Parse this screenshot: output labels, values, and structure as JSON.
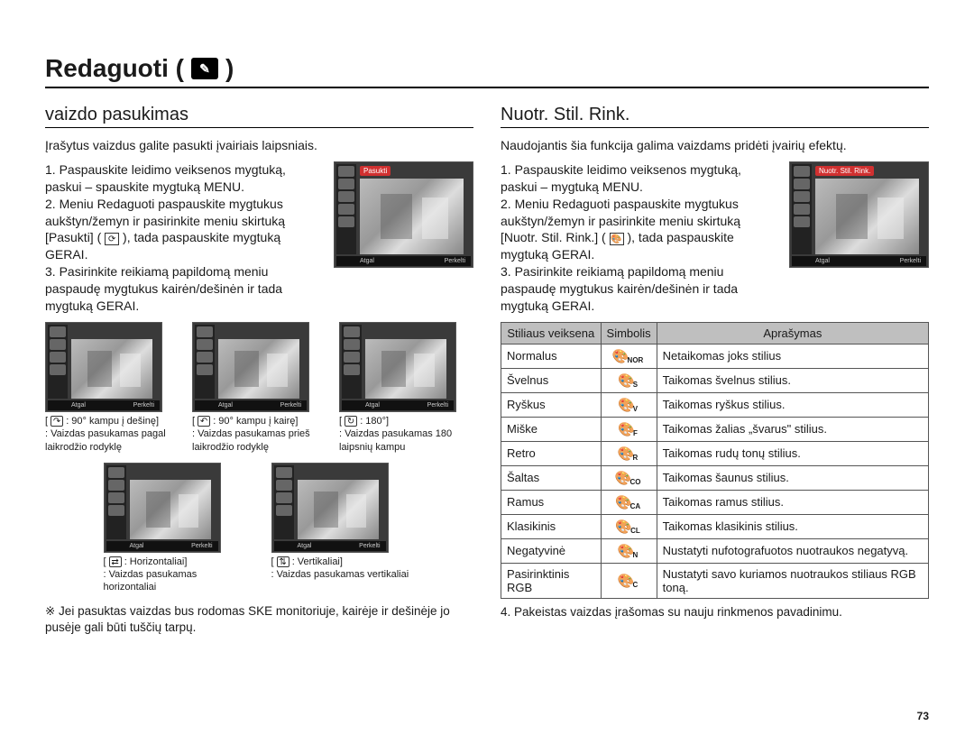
{
  "page": {
    "title": "Redaguoti (",
    "title_close": ")",
    "number": "73"
  },
  "left": {
    "heading": "vaizdo pasukimas",
    "intro": "Įrašytus vaizdus galite pasukti įvairiais laipsniais.",
    "step1": "1. Paspauskite leidimo veiksenos mygtuką, paskui – spauskite mygtuką MENU.",
    "step2": "2. Meniu Redaguoti paspauskite mygtukus aukštyn/žemyn ir pasirinkite meniu skirtuką [Pasukti] (",
    "step2b": "), tada paspauskite mygtuką GERAI.",
    "step3": "3. Pasirinkite reikiamą papildomą meniu paspaudę mygtukus kairėn/dešinėn ir tada mygtuką GERAI.",
    "thumb_menu": "Pasukti",
    "thumb_back": "Atgal",
    "thumb_move": "Perkelti",
    "rotations": [
      {
        "icon": "↷",
        "label": ": 90° kampu į dešinę]",
        "desc": ": Vaizdas pasukamas pagal laikrodžio rodyklę"
      },
      {
        "icon": "↶",
        "label": ": 90° kampu į kairę]",
        "desc": ": Vaizdas pasukamas prieš laikrodžio rodyklę"
      },
      {
        "icon": "↻",
        "label": ": 180°]",
        "desc": ": Vaizdas pasukamas 180 laipsnių kampu"
      }
    ],
    "rotations2": [
      {
        "icon": "⇄",
        "label": ": Horizontaliai]",
        "desc": ": Vaizdas pasukamas horizontaliai"
      },
      {
        "icon": "⇅",
        "label": ": Vertikaliai]",
        "desc": ": Vaizdas pasukamas vertikaliai"
      }
    ],
    "note": "※ Jei pasuktas vaizdas bus rodomas SKE monitoriuje, kairėje ir dešinėje jo pusėje gali būti tuščių tarpų."
  },
  "right": {
    "heading": "Nuotr. Stil. Rink.",
    "intro": "Naudojantis šia funkcija galima vaizdams pridėti įvairių efektų.",
    "step1": "1. Paspauskite leidimo veiksenos mygtuką, paskui – mygtuką MENU.",
    "step2": "2. Meniu Redaguoti paspauskite mygtukus aukštyn/žemyn ir pasirinkite meniu skirtuką [Nuotr. Stil. Rink.] (",
    "step2b": "), tada paspauskite mygtuką GERAI.",
    "step3": "3. Pasirinkite reikiamą papildomą meniu paspaudę mygtukus kairėn/dešinėn ir tada mygtuką GERAI.",
    "thumb_menu": "Nuotr. Stil. Rink.",
    "thumb_back": "Atgal",
    "thumb_move": "Perkelti",
    "table": {
      "headers": [
        "Stiliaus veiksena",
        "Simbolis",
        "Aprašymas"
      ],
      "rows": [
        {
          "mode": "Normalus",
          "sym": "NOR",
          "desc": "Netaikomas joks stilius"
        },
        {
          "mode": "Švelnus",
          "sym": "S",
          "desc": "Taikomas švelnus stilius."
        },
        {
          "mode": "Ryškus",
          "sym": "V",
          "desc": "Taikomas ryškus stilius."
        },
        {
          "mode": "Miške",
          "sym": "F",
          "desc": "Taikomas žalias „švarus\" stilius."
        },
        {
          "mode": "Retro",
          "sym": "R",
          "desc": "Taikomas rudų tonų stilius."
        },
        {
          "mode": "Šaltas",
          "sym": "CO",
          "desc": "Taikomas šaunus stilius."
        },
        {
          "mode": "Ramus",
          "sym": "CA",
          "desc": "Taikomas ramus stilius."
        },
        {
          "mode": "Klasikinis",
          "sym": "CL",
          "desc": "Taikomas klasikinis stilius."
        },
        {
          "mode": "Negatyvinė",
          "sym": "N",
          "desc": "Nustatyti nufotografuotos nuotraukos negatyvą."
        },
        {
          "mode": "Pasirinktinis RGB",
          "sym": "C",
          "desc": "Nustatyti savo kuriamos nuotraukos stiliaus RGB toną."
        }
      ]
    },
    "step4": "4. Pakeistas vaizdas įrašomas su nauju rinkmenos pavadinimu."
  }
}
